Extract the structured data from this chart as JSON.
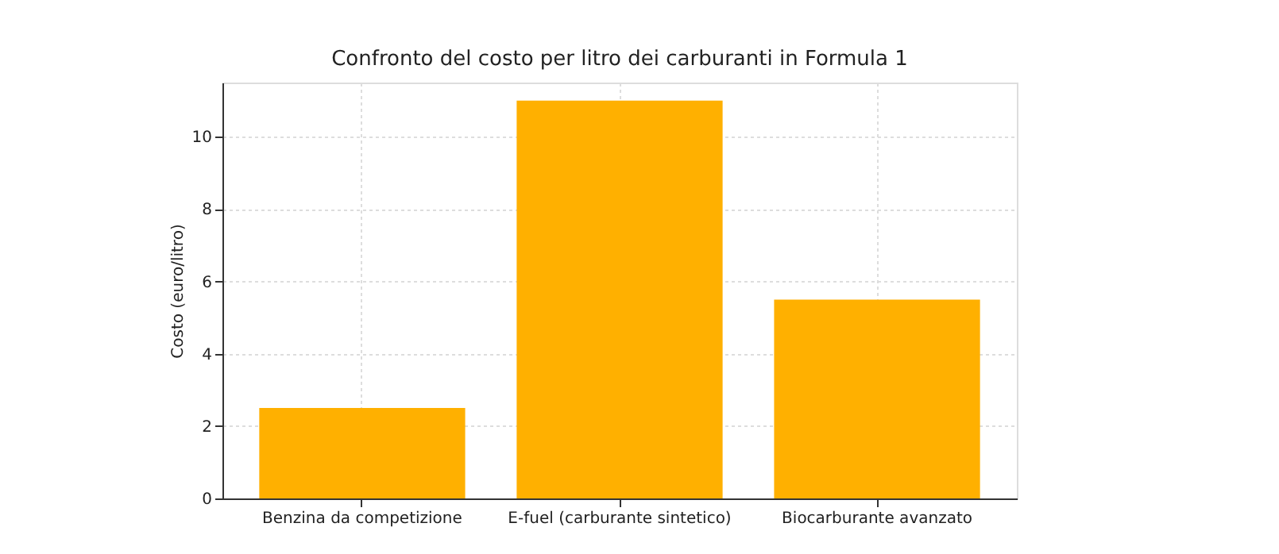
{
  "chart_data": {
    "type": "bar",
    "title": "Confronto del costo per litro dei carburanti in Formula 1",
    "ylabel": "Costo (euro/litro)",
    "categories": [
      "Benzina da competizione",
      "E-fuel (carburante sintetico)",
      "Biocarburante avanzato"
    ],
    "values": [
      2.5,
      11,
      5.5
    ],
    "color": "#ffb000",
    "ylim": [
      0,
      11.5
    ],
    "yticks": [
      0,
      2,
      4,
      6,
      8,
      10
    ],
    "grid": true
  }
}
